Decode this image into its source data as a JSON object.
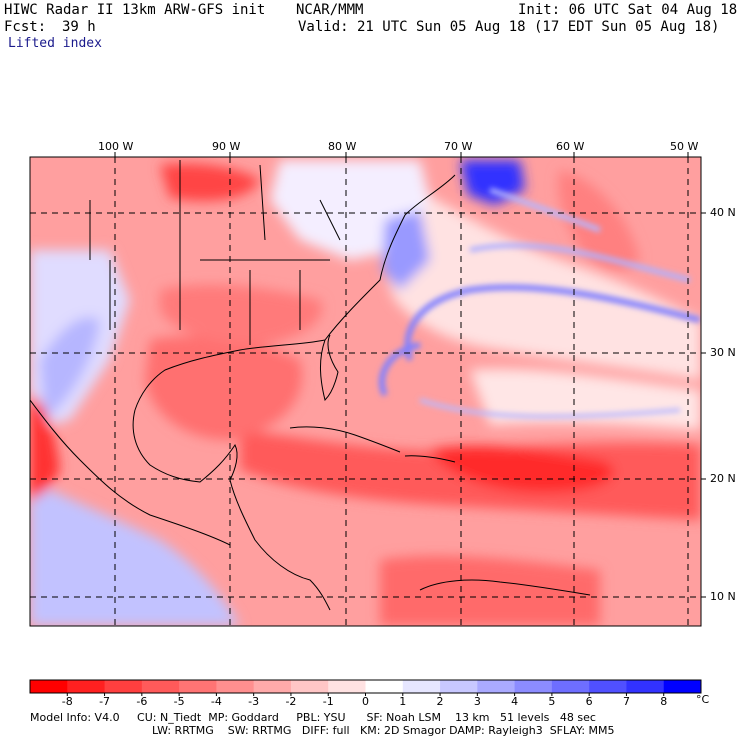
{
  "header": {
    "title_left": "HIWC Radar II 13km ARW-GFS init",
    "title_center": "NCAR/MMM",
    "init_time": "Init: 06 UTC Sat 04 Aug 18",
    "forecast_label": "Fcst:",
    "forecast_hours": "39 h",
    "valid_time": "Valid: 21 UTC Sun 05 Aug 18 (17 EDT Sun 05 Aug 18)",
    "field_name": "Lifted index"
  },
  "map": {
    "longitude_labels": [
      "100 W",
      "90 W",
      "80 W",
      "70 W",
      "60 W",
      "50 W"
    ],
    "latitude_labels": [
      "40 N",
      "30 N",
      "20 N",
      "10 N"
    ],
    "colors": {
      "deep_red": "#ff0000",
      "red": "#ff4a4a",
      "light_red": "#ff9a9a",
      "pale_red": "#ffd0d0",
      "white": "#ffffff",
      "pale_blue": "#d6d6ff",
      "blue": "#7a7aff",
      "deep_blue": "#1a1aff"
    }
  },
  "colorbar": {
    "unit": "°C",
    "tick_labels": [
      "-8",
      "-7",
      "-6",
      "-5",
      "-4",
      "-3",
      "-2",
      "-1",
      "0",
      "1",
      "2",
      "3",
      "4",
      "5",
      "6",
      "7",
      "8"
    ],
    "colors": [
      "#ff0000",
      "#ff2020",
      "#ff3f3f",
      "#ff5a5a",
      "#ff7474",
      "#ff8f8f",
      "#ffaaaa",
      "#ffc6c6",
      "#ffe2e2",
      "#ffffff",
      "#e6e6ff",
      "#c8c8ff",
      "#aaaaff",
      "#8c8cff",
      "#6e6eff",
      "#5050ff",
      "#3232ff",
      "#0000ff"
    ]
  },
  "model_info": {
    "line1": "Model Info: V4.0     CU: N_Tiedt  MP: Goddard     PBL: YSU      SF: Noah LSM    13 km   51 levels   48 sec",
    "line2": "LW: RRTMG    SW: RRTMG   DIFF: full   KM: 2D Smagor DAMP: Rayleigh3  SFLAY: MM5"
  }
}
